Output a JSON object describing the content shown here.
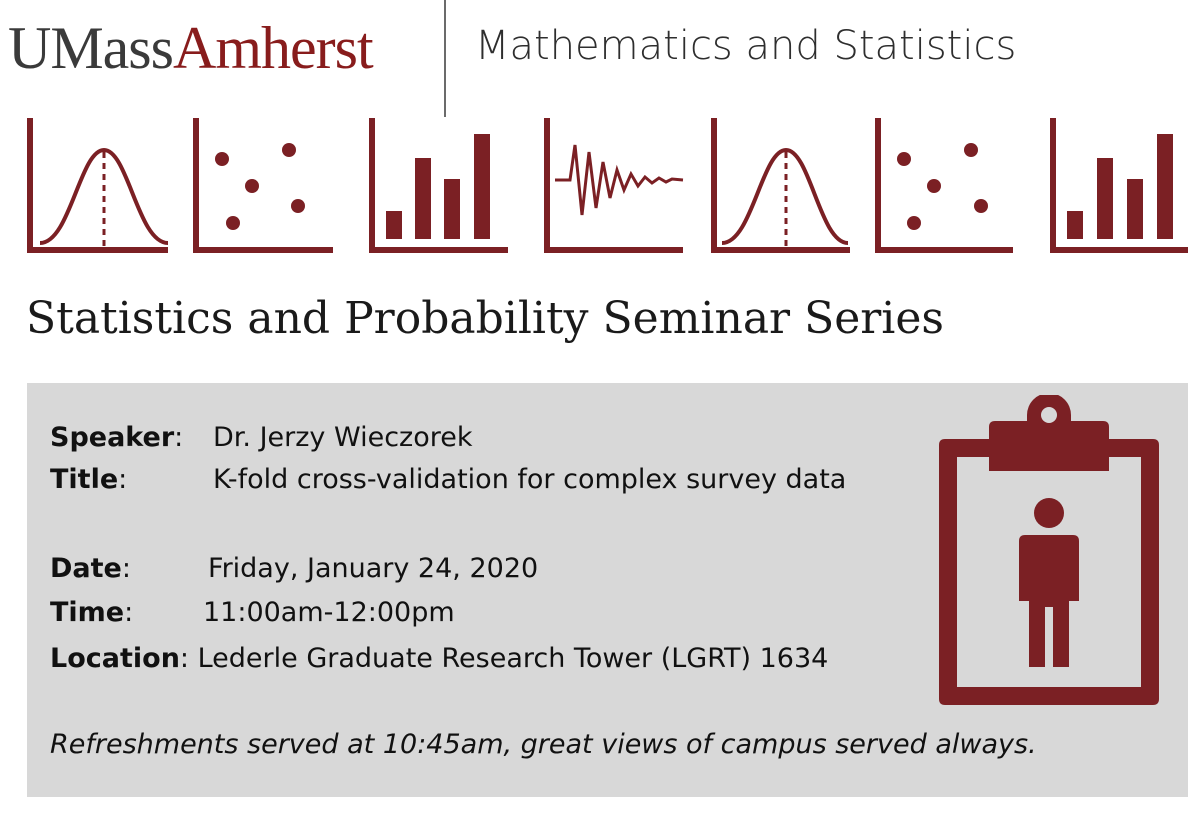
{
  "header": {
    "logo_part1": "UMass",
    "logo_part2": "Amherst",
    "department": "Mathematics and Statistics"
  },
  "icons": [
    "normal-distribution-icon",
    "scatter-plot-icon",
    "bar-chart-icon",
    "damped-oscillation-icon",
    "normal-distribution-icon",
    "scatter-plot-icon",
    "bar-chart-icon"
  ],
  "series_title": "Statistics and Probability Seminar Series",
  "details": {
    "speaker": {
      "label": "Speaker",
      "value": "Dr. Jerzy Wieczorek"
    },
    "title": {
      "label": "Title",
      "value": "K-fold cross-validation for complex survey data"
    },
    "date": {
      "label": "Date",
      "value": "Friday, January 24, 2020"
    },
    "time": {
      "label": "Time",
      "value": "11:00am-12:00pm"
    },
    "location": {
      "label": "Location",
      "value": "Lederle Graduate Research Tower (LGRT) 1634"
    }
  },
  "refreshments": "Refreshments served at 10:45am, great views of campus served always.",
  "colors": {
    "brand_maroon": "#7b2024",
    "panel_gray": "#d8d8d8"
  }
}
